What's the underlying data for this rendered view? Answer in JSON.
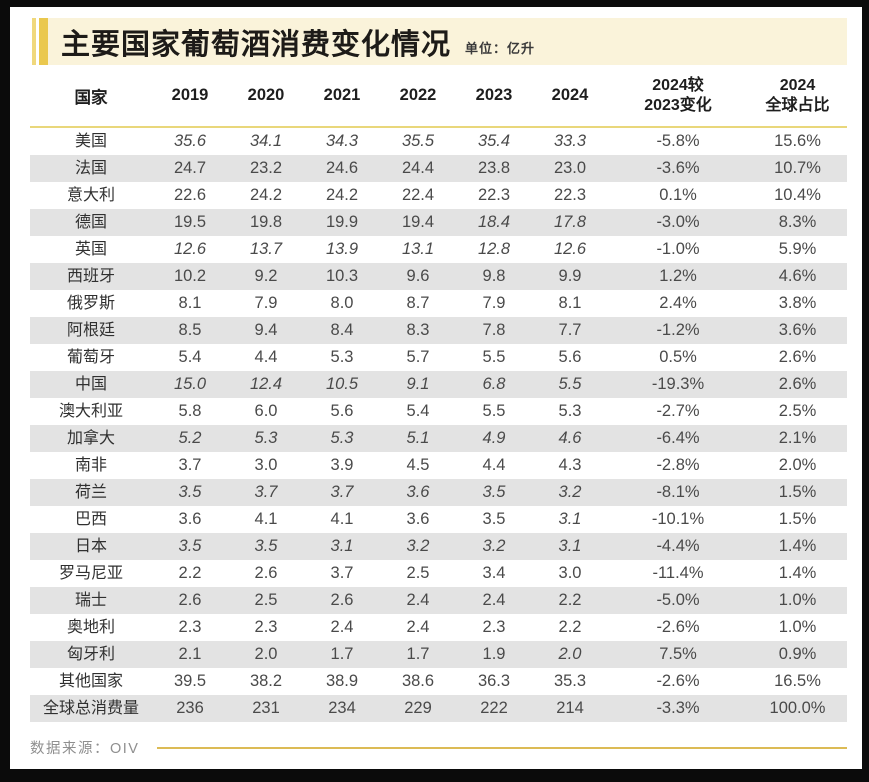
{
  "title": {
    "text": "主要国家葡萄酒消费变化情况",
    "unit_label": "单位：亿升"
  },
  "colors": {
    "accent_gold": "#eac84e",
    "accent_gold_light": "#f0d87c",
    "title_band_bg": "#faf3da",
    "header_rule_gold": "#e9d77b",
    "row_alt_gray": "#e3e3e3",
    "footer_line_gold": "#dcbb55",
    "frame_black": "#0b0b0b"
  },
  "table": {
    "header": {
      "country": "国家",
      "years": [
        "2019",
        "2020",
        "2021",
        "2022",
        "2023",
        "2024"
      ],
      "change_line1": "2024较",
      "change_line2": "2023变化",
      "share_line1": "2024",
      "share_line2": "全球占比"
    },
    "rows": [
      {
        "country": "美国",
        "values": [
          "35.6",
          "34.1",
          "34.3",
          "35.5",
          "35.4",
          "33.3"
        ],
        "italic": [
          1,
          1,
          1,
          1,
          1,
          1
        ],
        "change": "-5.8%",
        "share": "15.6%"
      },
      {
        "country": "法国",
        "values": [
          "24.7",
          "23.2",
          "24.6",
          "24.4",
          "23.8",
          "23.0"
        ],
        "italic": [
          0,
          0,
          0,
          0,
          0,
          0
        ],
        "change": "-3.6%",
        "share": "10.7%"
      },
      {
        "country": "意大利",
        "values": [
          "22.6",
          "24.2",
          "24.2",
          "22.4",
          "22.3",
          "22.3"
        ],
        "italic": [
          0,
          0,
          0,
          0,
          0,
          0
        ],
        "change": "0.1%",
        "share": "10.4%"
      },
      {
        "country": "德国",
        "values": [
          "19.5",
          "19.8",
          "19.9",
          "19.4",
          "18.4",
          "17.8"
        ],
        "italic": [
          0,
          0,
          0,
          0,
          1,
          1
        ],
        "change": "-3.0%",
        "share": "8.3%"
      },
      {
        "country": "英国",
        "values": [
          "12.6",
          "13.7",
          "13.9",
          "13.1",
          "12.8",
          "12.6"
        ],
        "italic": [
          1,
          1,
          1,
          1,
          1,
          1
        ],
        "change": "-1.0%",
        "share": "5.9%"
      },
      {
        "country": "西班牙",
        "values": [
          "10.2",
          "9.2",
          "10.3",
          "9.6",
          "9.8",
          "9.9"
        ],
        "italic": [
          0,
          0,
          0,
          0,
          0,
          0
        ],
        "change": "1.2%",
        "share": "4.6%"
      },
      {
        "country": "俄罗斯",
        "values": [
          "8.1",
          "7.9",
          "8.0",
          "8.7",
          "7.9",
          "8.1"
        ],
        "italic": [
          0,
          0,
          0,
          0,
          0,
          0
        ],
        "change": "2.4%",
        "share": "3.8%"
      },
      {
        "country": "阿根廷",
        "values": [
          "8.5",
          "9.4",
          "8.4",
          "8.3",
          "7.8",
          "7.7"
        ],
        "italic": [
          0,
          0,
          0,
          0,
          0,
          0
        ],
        "change": "-1.2%",
        "share": "3.6%"
      },
      {
        "country": "葡萄牙",
        "values": [
          "5.4",
          "4.4",
          "5.3",
          "5.7",
          "5.5",
          "5.6"
        ],
        "italic": [
          0,
          0,
          0,
          0,
          0,
          0
        ],
        "change": "0.5%",
        "share": "2.6%"
      },
      {
        "country": "中国",
        "values": [
          "15.0",
          "12.4",
          "10.5",
          "9.1",
          "6.8",
          "5.5"
        ],
        "italic": [
          1,
          1,
          1,
          1,
          1,
          1
        ],
        "change": "-19.3%",
        "share": "2.6%"
      },
      {
        "country": "澳大利亚",
        "values": [
          "5.8",
          "6.0",
          "5.6",
          "5.4",
          "5.5",
          "5.3"
        ],
        "italic": [
          0,
          0,
          0,
          0,
          0,
          0
        ],
        "change": "-2.7%",
        "share": "2.5%"
      },
      {
        "country": "加拿大",
        "values": [
          "5.2",
          "5.3",
          "5.3",
          "5.1",
          "4.9",
          "4.6"
        ],
        "italic": [
          1,
          1,
          1,
          1,
          1,
          1
        ],
        "change": "-6.4%",
        "share": "2.1%"
      },
      {
        "country": "南非",
        "values": [
          "3.7",
          "3.0",
          "3.9",
          "4.5",
          "4.4",
          "4.3"
        ],
        "italic": [
          0,
          0,
          0,
          0,
          0,
          0
        ],
        "change": "-2.8%",
        "share": "2.0%"
      },
      {
        "country": "荷兰",
        "values": [
          "3.5",
          "3.7",
          "3.7",
          "3.6",
          "3.5",
          "3.2"
        ],
        "italic": [
          1,
          1,
          1,
          1,
          1,
          1
        ],
        "change": "-8.1%",
        "share": "1.5%"
      },
      {
        "country": "巴西",
        "values": [
          "3.6",
          "4.1",
          "4.1",
          "3.6",
          "3.5",
          "3.1"
        ],
        "italic": [
          0,
          0,
          0,
          0,
          0,
          1
        ],
        "change": "-10.1%",
        "share": "1.5%"
      },
      {
        "country": "日本",
        "values": [
          "3.5",
          "3.5",
          "3.1",
          "3.2",
          "3.2",
          "3.1"
        ],
        "italic": [
          1,
          1,
          1,
          1,
          1,
          1
        ],
        "change": "-4.4%",
        "share": "1.4%"
      },
      {
        "country": "罗马尼亚",
        "values": [
          "2.2",
          "2.6",
          "3.7",
          "2.5",
          "3.4",
          "3.0"
        ],
        "italic": [
          0,
          0,
          0,
          0,
          0,
          0
        ],
        "change": "-11.4%",
        "share": "1.4%"
      },
      {
        "country": "瑞士",
        "values": [
          "2.6",
          "2.5",
          "2.6",
          "2.4",
          "2.4",
          "2.2"
        ],
        "italic": [
          0,
          0,
          0,
          0,
          0,
          0
        ],
        "change": "-5.0%",
        "share": "1.0%"
      },
      {
        "country": "奥地利",
        "values": [
          "2.3",
          "2.3",
          "2.4",
          "2.4",
          "2.3",
          "2.2"
        ],
        "italic": [
          0,
          0,
          0,
          0,
          0,
          0
        ],
        "change": "-2.6%",
        "share": "1.0%"
      },
      {
        "country": "匈牙利",
        "values": [
          "2.1",
          "2.0",
          "1.7",
          "1.7",
          "1.9",
          "2.0"
        ],
        "italic": [
          0,
          0,
          0,
          0,
          0,
          1
        ],
        "change": "7.5%",
        "share": "0.9%"
      },
      {
        "country": "其他国家",
        "values": [
          "39.5",
          "38.2",
          "38.9",
          "38.6",
          "36.3",
          "35.3"
        ],
        "italic": [
          0,
          0,
          0,
          0,
          0,
          0
        ],
        "change": "-2.6%",
        "share": "16.5%"
      },
      {
        "country": "全球总消费量",
        "values": [
          "236",
          "231",
          "234",
          "229",
          "222",
          "214"
        ],
        "italic": [
          0,
          0,
          0,
          0,
          0,
          0
        ],
        "change": "-3.3%",
        "share": "100.0%"
      }
    ]
  },
  "footer": {
    "source": "数据来源：OIV"
  },
  "chart_data": {
    "type": "table",
    "title": "主要国家葡萄酒消费变化情况",
    "unit": "亿升",
    "columns": [
      "国家",
      "2019",
      "2020",
      "2021",
      "2022",
      "2023",
      "2024",
      "2024较2023变化",
      "2024全球占比"
    ],
    "rows": [
      [
        "美国",
        35.6,
        34.1,
        34.3,
        35.5,
        35.4,
        33.3,
        "-5.8%",
        "15.6%"
      ],
      [
        "法国",
        24.7,
        23.2,
        24.6,
        24.4,
        23.8,
        23.0,
        "-3.6%",
        "10.7%"
      ],
      [
        "意大利",
        22.6,
        24.2,
        24.2,
        22.4,
        22.3,
        22.3,
        "0.1%",
        "10.4%"
      ],
      [
        "德国",
        19.5,
        19.8,
        19.9,
        19.4,
        18.4,
        17.8,
        "-3.0%",
        "8.3%"
      ],
      [
        "英国",
        12.6,
        13.7,
        13.9,
        13.1,
        12.8,
        12.6,
        "-1.0%",
        "5.9%"
      ],
      [
        "西班牙",
        10.2,
        9.2,
        10.3,
        9.6,
        9.8,
        9.9,
        "1.2%",
        "4.6%"
      ],
      [
        "俄罗斯",
        8.1,
        7.9,
        8.0,
        8.7,
        7.9,
        8.1,
        "2.4%",
        "3.8%"
      ],
      [
        "阿根廷",
        8.5,
        9.4,
        8.4,
        8.3,
        7.8,
        7.7,
        "-1.2%",
        "3.6%"
      ],
      [
        "葡萄牙",
        5.4,
        4.4,
        5.3,
        5.7,
        5.5,
        5.6,
        "0.5%",
        "2.6%"
      ],
      [
        "中国",
        15.0,
        12.4,
        10.5,
        9.1,
        6.8,
        5.5,
        "-19.3%",
        "2.6%"
      ],
      [
        "澳大利亚",
        5.8,
        6.0,
        5.6,
        5.4,
        5.5,
        5.3,
        "-2.7%",
        "2.5%"
      ],
      [
        "加拿大",
        5.2,
        5.3,
        5.3,
        5.1,
        4.9,
        4.6,
        "-6.4%",
        "2.1%"
      ],
      [
        "南非",
        3.7,
        3.0,
        3.9,
        4.5,
        4.4,
        4.3,
        "-2.8%",
        "2.0%"
      ],
      [
        "荷兰",
        3.5,
        3.7,
        3.7,
        3.6,
        3.5,
        3.2,
        "-8.1%",
        "1.5%"
      ],
      [
        "巴西",
        3.6,
        4.1,
        4.1,
        3.6,
        3.5,
        3.1,
        "-10.1%",
        "1.5%"
      ],
      [
        "日本",
        3.5,
        3.5,
        3.1,
        3.2,
        3.2,
        3.1,
        "-4.4%",
        "1.4%"
      ],
      [
        "罗马尼亚",
        2.2,
        2.6,
        3.7,
        2.5,
        3.4,
        3.0,
        "-11.4%",
        "1.4%"
      ],
      [
        "瑞士",
        2.6,
        2.5,
        2.6,
        2.4,
        2.4,
        2.2,
        "-5.0%",
        "1.0%"
      ],
      [
        "奥地利",
        2.3,
        2.3,
        2.4,
        2.4,
        2.3,
        2.2,
        "-2.6%",
        "1.0%"
      ],
      [
        "匈牙利",
        2.1,
        2.0,
        1.7,
        1.7,
        1.9,
        2.0,
        "7.5%",
        "0.9%"
      ],
      [
        "其他国家",
        39.5,
        38.2,
        38.9,
        38.6,
        36.3,
        35.3,
        "-2.6%",
        "16.5%"
      ],
      [
        "全球总消费量",
        236,
        231,
        234,
        229,
        222,
        214,
        "-3.3%",
        "100.0%"
      ]
    ]
  }
}
